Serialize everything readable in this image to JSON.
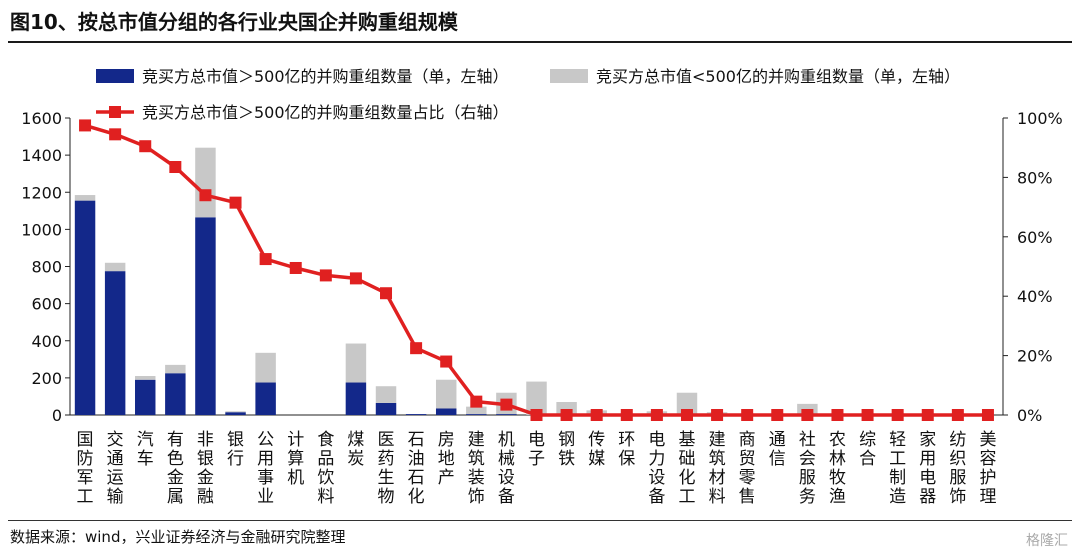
{
  "header": {
    "title": "图10、按总市值分组的各行业央国企并购重组规模"
  },
  "footer": {
    "source": "数据来源：wind，兴业证券经济与金融研究院整理",
    "watermark": "格隆汇"
  },
  "colors": {
    "large_cap": "#13288a",
    "small_cap": "#c8c8c8",
    "ratio_line": "#e02020",
    "axis": "#222222"
  },
  "chart_data": {
    "type": "bar",
    "stacked": true,
    "categories": [
      "国防军工",
      "交通运输",
      "汽车",
      "有色金属",
      "非银金融",
      "银行",
      "公用事业",
      "计算机",
      "食品饮料",
      "煤炭",
      "医药生物",
      "石油石化",
      "房地产",
      "建筑装饰",
      "机械设备",
      "电子",
      "钢铁",
      "传媒",
      "环保",
      "电力设备",
      "基础化工",
      "建筑材料",
      "商贸零售",
      "通信",
      "社会服务",
      "农林牧渔",
      "综合",
      "轻工制造",
      "家用电器",
      "纺织服饰",
      "美容护理"
    ],
    "series": [
      {
        "name": "竞买方总市值＞500亿的并购重组数量（单，左轴）",
        "axis": "left",
        "kind": "bar",
        "values": [
          1155,
          775,
          190,
          225,
          1065,
          15,
          175,
          0,
          0,
          175,
          65,
          5,
          35,
          5,
          5,
          0,
          0,
          0,
          0,
          0,
          0,
          0,
          0,
          0,
          0,
          0,
          0,
          0,
          0,
          0,
          0
        ]
      },
      {
        "name": "竞买方总市值<500亿的并购重组数量（单，左轴）",
        "axis": "left",
        "kind": "bar",
        "values": [
          30,
          45,
          20,
          45,
          375,
          5,
          160,
          0,
          0,
          210,
          90,
          0,
          155,
          40,
          115,
          180,
          70,
          25,
          5,
          20,
          120,
          15,
          5,
          5,
          60,
          5,
          0,
          0,
          0,
          0,
          0
        ]
      },
      {
        "name": "竞买方总市值＞500亿的并购重组数量占比（右轴）",
        "axis": "right",
        "kind": "line",
        "values": [
          97.5,
          94.5,
          90.5,
          83.5,
          74,
          71.5,
          52.5,
          49.5,
          47,
          46,
          41,
          22.5,
          18,
          4.5,
          3.5,
          0,
          0,
          0,
          0,
          0,
          0,
          0,
          0,
          0,
          0,
          0,
          0,
          0,
          0,
          0,
          0
        ]
      }
    ],
    "y_left": {
      "min": 0,
      "max": 1600,
      "ticks": [
        "0",
        "200",
        "400",
        "600",
        "800",
        "1000",
        "1200",
        "1400",
        "1600"
      ]
    },
    "y_right": {
      "min": 0,
      "max": 100,
      "unit": "%",
      "ticks": [
        "0%",
        "20%",
        "40%",
        "60%",
        "80%",
        "100%"
      ]
    },
    "legend_position": "top",
    "grid": false
  }
}
